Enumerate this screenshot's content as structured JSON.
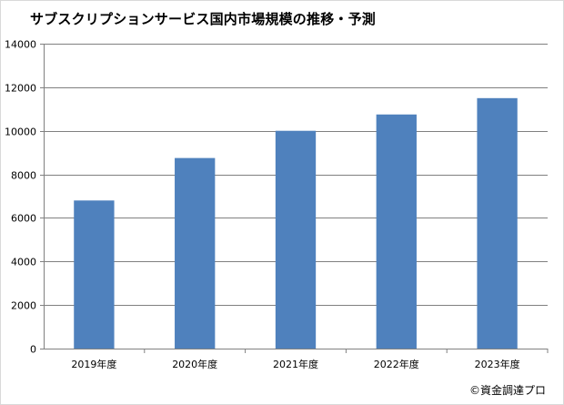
{
  "chart_data": {
    "type": "bar",
    "title": "サブスクリプションサービス国内市場規模の推移・予測",
    "categories": [
      "2019年度",
      "2020年度",
      "2021年度",
      "2022年度",
      "2023年度"
    ],
    "values": [
      6800,
      8750,
      10000,
      10750,
      11500
    ],
    "xlabel": "",
    "ylabel": "",
    "ylim": [
      0,
      14000
    ],
    "yticks": [
      0,
      2000,
      4000,
      6000,
      8000,
      10000,
      12000,
      14000
    ],
    "grid": true,
    "legend": "none",
    "colors": {
      "bar": "#4F81BD",
      "grid": "#808080"
    }
  },
  "footer": {
    "copyright": "©資金調達プロ"
  }
}
